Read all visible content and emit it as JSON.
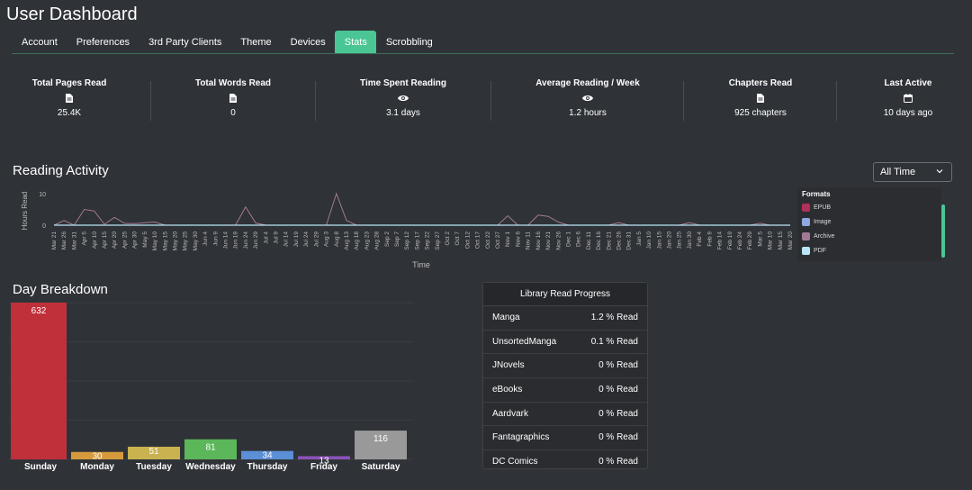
{
  "page": {
    "title": "User Dashboard"
  },
  "tabs": [
    {
      "label": "Account",
      "active": false
    },
    {
      "label": "Preferences",
      "active": false
    },
    {
      "label": "3rd Party Clients",
      "active": false
    },
    {
      "label": "Theme",
      "active": false
    },
    {
      "label": "Devices",
      "active": false
    },
    {
      "label": "Stats",
      "active": true
    },
    {
      "label": "Scrobbling",
      "active": false
    }
  ],
  "stats": [
    {
      "label": "Total Pages Read",
      "icon": "document-icon",
      "value": "25.4K"
    },
    {
      "label": "Total Words Read",
      "icon": "document-icon",
      "value": "0"
    },
    {
      "label": "Time Spent Reading",
      "icon": "eye-icon",
      "value": "3.1 days"
    },
    {
      "label": "Average Reading / Week",
      "icon": "eye-icon",
      "value": "1.2 hours"
    },
    {
      "label": "Chapters Read",
      "icon": "document-icon",
      "value": "925 chapters"
    },
    {
      "label": "Last Active",
      "icon": "calendar-icon",
      "value": "10 days ago"
    }
  ],
  "reading_activity": {
    "title": "Reading Activity",
    "filter": {
      "selected": "All Time"
    },
    "legend_title": "Formats"
  },
  "day_breakdown": {
    "title": "Day Breakdown"
  },
  "library_progress": {
    "title": "Library Read Progress",
    "rows": [
      {
        "name": "Manga",
        "value": "1.2 % Read"
      },
      {
        "name": "UnsortedManga",
        "value": "0.1 % Read"
      },
      {
        "name": "JNovels",
        "value": "0 % Read"
      },
      {
        "name": "eBooks",
        "value": "0 % Read"
      },
      {
        "name": "Aardvark",
        "value": "0 % Read"
      },
      {
        "name": "Fantagraphics",
        "value": "0 % Read"
      },
      {
        "name": "DC Comics",
        "value": "0 % Read"
      }
    ]
  },
  "colors": {
    "accent": "#4ac694",
    "epub": "#b03058",
    "image": "#8fa8df",
    "archive": "#a27a98",
    "pdf": "#b9e6f6"
  },
  "chart_data": [
    {
      "type": "line",
      "title": "",
      "xlabel": "Time",
      "ylabel": "Hours Read",
      "ylim": [
        0,
        10
      ],
      "yticks": [
        0,
        10
      ],
      "x": [
        "Mar 21",
        "Mar 26",
        "Mar 31",
        "Apr 5",
        "Apr 10",
        "Apr 15",
        "Apr 20",
        "Apr 25",
        "Apr 30",
        "May 5",
        "May 10",
        "May 15",
        "May 20",
        "May 25",
        "May 30",
        "Jun 4",
        "Jun 9",
        "Jun 14",
        "Jun 19",
        "Jun 24",
        "Jun 29",
        "Jul 4",
        "Jul 9",
        "Jul 14",
        "Jul 19",
        "Jul 24",
        "Jul 29",
        "Aug 3",
        "Aug 8",
        "Aug 13",
        "Aug 18",
        "Aug 23",
        "Aug 28",
        "Sep 2",
        "Sep 7",
        "Sep 12",
        "Sep 17",
        "Sep 22",
        "Sep 27",
        "Oct 2",
        "Oct 7",
        "Oct 12",
        "Oct 17",
        "Oct 22",
        "Oct 27",
        "Nov 1",
        "Nov 6",
        "Nov 11",
        "Nov 16",
        "Nov 21",
        "Nov 26",
        "Dec 1",
        "Dec 6",
        "Dec 11",
        "Dec 16",
        "Dec 21",
        "Dec 26",
        "Dec 31",
        "Jan 5",
        "Jan 10",
        "Jan 15",
        "Jan 20",
        "Jan 25",
        "Jan 30",
        "Feb 4",
        "Feb 9",
        "Feb 14",
        "Feb 19",
        "Feb 24",
        "Feb 29",
        "Mar 5",
        "Mar 10",
        "Mar 15",
        "Mar 20"
      ],
      "series": [
        {
          "name": "EPUB",
          "values": [
            0,
            0,
            0,
            0,
            0,
            0,
            0,
            0,
            0,
            0,
            0,
            0,
            0,
            0,
            0,
            0,
            0,
            0,
            0,
            0,
            0,
            0,
            0,
            0,
            0,
            0,
            0,
            0,
            0,
            0,
            0,
            0,
            0,
            0,
            0,
            0,
            0,
            0,
            0,
            0,
            0,
            0,
            0,
            0,
            0,
            0,
            0,
            0,
            0,
            0,
            0,
            0,
            0,
            0,
            0,
            0,
            0,
            0,
            0,
            0,
            0,
            0,
            0,
            0,
            0,
            0,
            0,
            0,
            0,
            0,
            0,
            0,
            0,
            0
          ]
        },
        {
          "name": "Image",
          "values": [
            0,
            0,
            0,
            0,
            0,
            0,
            0,
            0,
            0,
            0,
            0,
            0,
            0,
            0,
            0,
            0,
            0,
            0,
            0,
            0,
            0,
            0,
            0,
            0,
            0,
            0,
            0,
            0,
            0,
            0,
            0,
            0,
            0,
            0,
            0,
            0,
            0,
            0,
            0,
            0,
            0,
            0,
            0,
            0,
            0,
            0,
            0,
            0,
            0,
            0,
            0,
            0,
            0,
            0,
            0,
            0,
            0,
            0,
            0,
            0,
            0,
            0,
            0,
            0,
            0,
            0,
            0,
            0,
            0,
            0,
            0,
            0,
            0,
            0
          ]
        },
        {
          "name": "Archive",
          "values": [
            0,
            1.5,
            0,
            5,
            4.5,
            0.3,
            2.5,
            0.6,
            0.5,
            0.8,
            1,
            0,
            0,
            0,
            0,
            0,
            0,
            0,
            0,
            5.8,
            0.7,
            0,
            0,
            0,
            0,
            0,
            0,
            0,
            10,
            1.5,
            0,
            0,
            0,
            0,
            0,
            0,
            0,
            0,
            0,
            0,
            0,
            0,
            0,
            0,
            0,
            3,
            0,
            0,
            3.2,
            2.8,
            1,
            0,
            0,
            0,
            0,
            0,
            0.8,
            0,
            0,
            0,
            0,
            0,
            0,
            0.8,
            0,
            0,
            0,
            0,
            0,
            0,
            0.6,
            0,
            0,
            0
          ]
        },
        {
          "name": "PDF",
          "values": [
            0,
            0,
            0,
            0,
            0,
            0,
            0,
            0,
            0,
            0,
            0,
            0,
            0,
            0,
            0,
            0,
            0,
            0,
            0,
            0,
            0,
            0,
            0,
            0,
            0,
            0,
            0,
            0,
            0,
            0,
            0,
            0,
            0,
            0,
            0,
            0,
            0,
            0,
            0,
            0,
            0,
            0,
            0,
            0,
            0,
            0,
            0,
            0,
            0,
            0,
            0,
            0,
            0,
            0,
            0,
            0,
            0,
            0,
            0,
            0,
            0,
            0,
            0,
            0,
            0,
            0,
            0,
            0,
            0,
            0,
            0,
            0,
            0,
            0
          ]
        }
      ],
      "legend": "right"
    },
    {
      "type": "bar",
      "title": "",
      "categories": [
        "Sunday",
        "Monday",
        "Tuesday",
        "Wednesday",
        "Thursday",
        "Friday",
        "Saturday"
      ],
      "values": [
        632,
        30,
        51,
        81,
        34,
        13,
        116
      ],
      "colors": [
        "#c0303a",
        "#d59a3c",
        "#c9b24f",
        "#5cb65a",
        "#5b8fd6",
        "#8a52b9",
        "#999999"
      ],
      "ylim": [
        0,
        632
      ]
    }
  ]
}
